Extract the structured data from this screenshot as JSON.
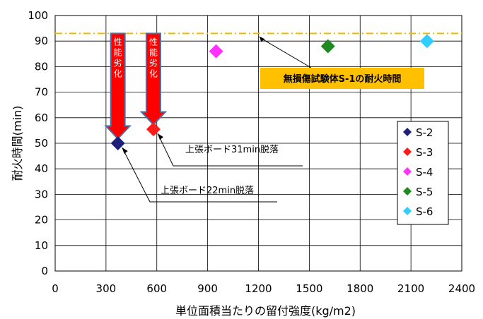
{
  "chart_data": {
    "type": "scatter",
    "xlabel": "単位面積当たりの留付強度(kg/m2)",
    "ylabel": "耐火時間(min)",
    "xlim": [
      0,
      2400
    ],
    "ylim": [
      0,
      100
    ],
    "xticks": [
      0,
      300,
      600,
      900,
      1200,
      1500,
      1800,
      2100,
      2400
    ],
    "yticks": [
      0,
      10,
      20,
      30,
      40,
      50,
      60,
      70,
      80,
      90,
      100
    ],
    "grid": true,
    "legend_position": "right",
    "series": [
      {
        "name": "S-2",
        "color": "#1f1f7a",
        "x": 370,
        "y": 50
      },
      {
        "name": "S-3",
        "color": "#ff1a1a",
        "x": 580,
        "y": 55.5
      },
      {
        "name": "S-4",
        "color": "#ff33ff",
        "x": 950,
        "y": 86
      },
      {
        "name": "S-5",
        "color": "#1f8a1f",
        "x": 1610,
        "y": 88
      },
      {
        "name": "S-6",
        "color": "#33ccff",
        "x": 2195,
        "y": 90
      }
    ],
    "reference_line": {
      "y": 93,
      "color": "#f2b800",
      "label": "無損傷試験体S-1の耐火時間",
      "pointer_x": 1200
    },
    "degradation_arrows": [
      {
        "label": "性能劣化",
        "x": 370,
        "y_from": 93,
        "y_to": 54
      },
      {
        "label": "性能劣化",
        "x": 580,
        "y_from": 93,
        "y_to": 59.5
      }
    ],
    "annotations": [
      {
        "text": "上張ボード31min脱落",
        "x": 580,
        "y": 55.5
      },
      {
        "text": "上張ボード22min脱落",
        "x": 370,
        "y": 50
      }
    ]
  }
}
